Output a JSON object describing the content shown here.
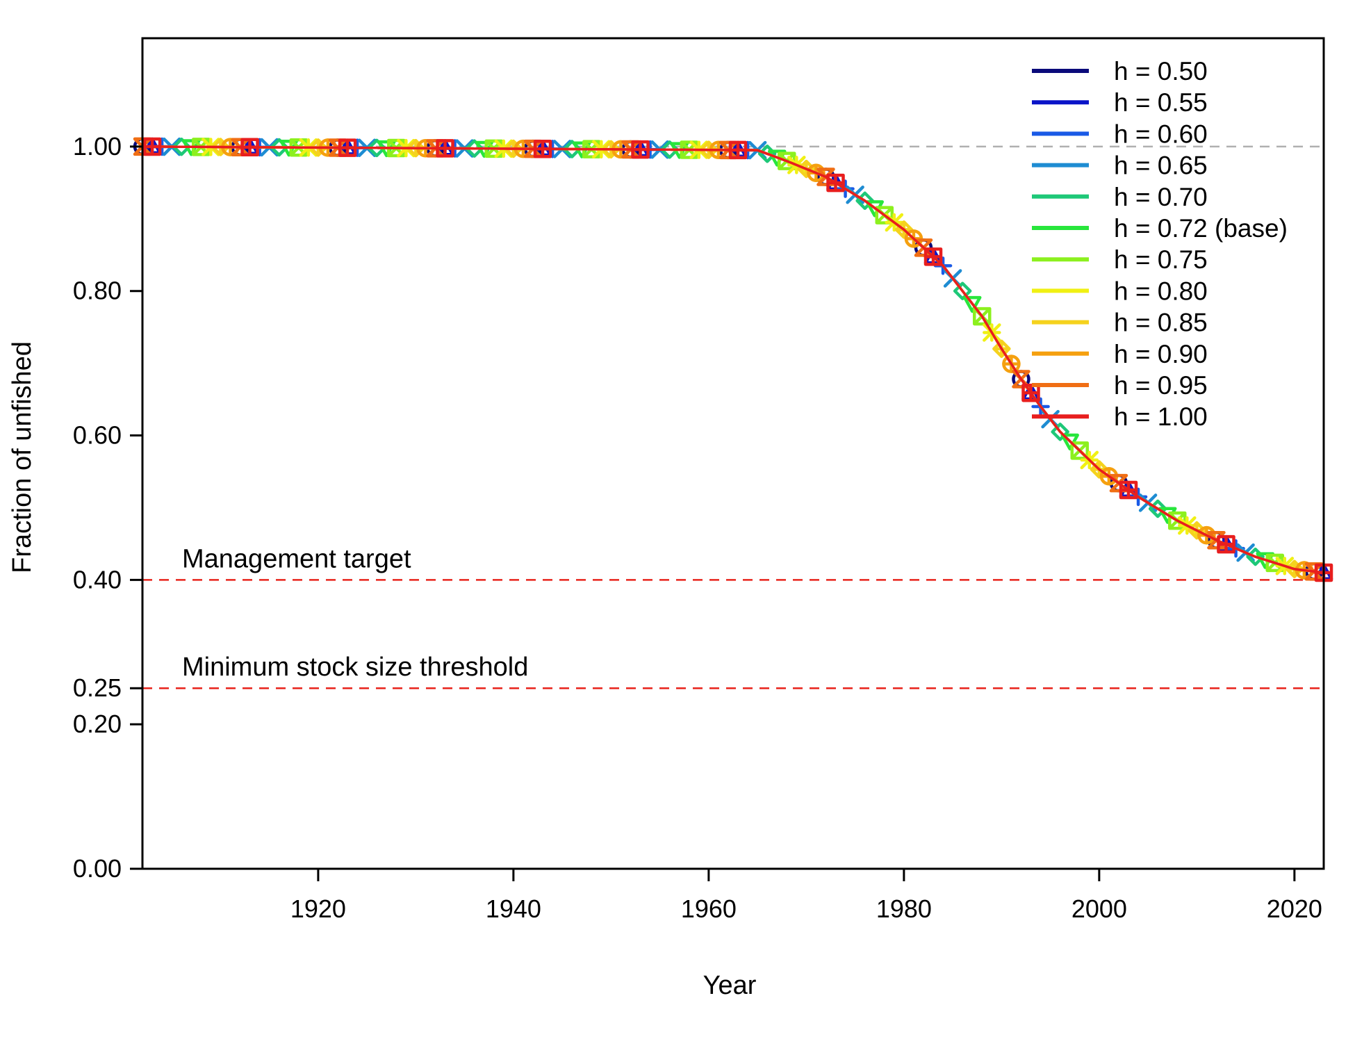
{
  "chart_data": {
    "type": "line",
    "xlabel": "Year",
    "ylabel": "Fraction of unfished",
    "xlim": [
      1902,
      2023
    ],
    "ylim": [
      0,
      1.15
    ],
    "x_ticks": [
      1920,
      1940,
      1960,
      1980,
      2000,
      2020
    ],
    "x_tick_labels": [
      "1920",
      "1940",
      "1960",
      "1980",
      "2000",
      "2020"
    ],
    "y_ticks": [
      0.0,
      0.2,
      0.25,
      0.4,
      0.6,
      0.8,
      1.0
    ],
    "y_tick_labels": [
      "0.00",
      "0.20",
      "0.25",
      "0.40",
      "0.60",
      "0.80",
      "1.00"
    ],
    "grid": false,
    "legend_position": "top-right",
    "reference_lines": [
      {
        "y": 1.0,
        "style": "dashed",
        "color": "#b0b0b0",
        "label": ""
      },
      {
        "y": 0.4,
        "style": "dashed",
        "color": "#e8231b",
        "label": "Management target"
      },
      {
        "y": 0.25,
        "style": "dashed",
        "color": "#e8231b",
        "label": "Minimum stock size threshold"
      }
    ],
    "x": [
      1902,
      1965,
      1968,
      1972,
      1976,
      1980,
      1984,
      1988,
      1990,
      1992,
      1994,
      1996,
      2000,
      2004,
      2008,
      2012,
      2016,
      2020,
      2023
    ],
    "series": [
      {
        "name": "h = 0.50",
        "color": "#0a0a7a",
        "marker": "circle",
        "values": [
          1.0,
          0.995,
          0.98,
          0.958,
          0.925,
          0.885,
          0.835,
          0.765,
          0.72,
          0.678,
          0.64,
          0.605,
          0.553,
          0.515,
          0.482,
          0.455,
          0.432,
          0.415,
          0.41
        ]
      },
      {
        "name": "h = 0.55",
        "color": "#0a14c8",
        "marker": "triangle",
        "values": [
          1.0,
          0.995,
          0.98,
          0.958,
          0.925,
          0.885,
          0.835,
          0.765,
          0.72,
          0.678,
          0.64,
          0.605,
          0.553,
          0.515,
          0.482,
          0.455,
          0.432,
          0.415,
          0.41
        ]
      },
      {
        "name": "h = 0.60",
        "color": "#1a5ae6",
        "marker": "plus",
        "values": [
          1.0,
          0.995,
          0.98,
          0.958,
          0.925,
          0.885,
          0.835,
          0.765,
          0.72,
          0.678,
          0.64,
          0.605,
          0.553,
          0.515,
          0.482,
          0.455,
          0.432,
          0.415,
          0.41
        ]
      },
      {
        "name": "h = 0.65",
        "color": "#1e8cd2",
        "marker": "x",
        "values": [
          1.0,
          0.995,
          0.98,
          0.958,
          0.925,
          0.885,
          0.835,
          0.765,
          0.72,
          0.678,
          0.64,
          0.605,
          0.553,
          0.515,
          0.482,
          0.455,
          0.432,
          0.415,
          0.41
        ]
      },
      {
        "name": "h = 0.70",
        "color": "#1ec878",
        "marker": "diamond",
        "values": [
          1.0,
          0.995,
          0.98,
          0.958,
          0.925,
          0.885,
          0.835,
          0.765,
          0.72,
          0.678,
          0.64,
          0.605,
          0.553,
          0.515,
          0.482,
          0.455,
          0.432,
          0.415,
          0.41
        ]
      },
      {
        "name": "h = 0.72 (base)",
        "color": "#28e63c",
        "marker": "triangle-down",
        "values": [
          1.0,
          0.995,
          0.98,
          0.958,
          0.925,
          0.885,
          0.835,
          0.765,
          0.72,
          0.678,
          0.64,
          0.605,
          0.553,
          0.515,
          0.482,
          0.455,
          0.432,
          0.415,
          0.41
        ]
      },
      {
        "name": "h = 0.75",
        "color": "#8cf01e",
        "marker": "square-x",
        "values": [
          1.0,
          0.995,
          0.98,
          0.958,
          0.925,
          0.885,
          0.835,
          0.765,
          0.72,
          0.678,
          0.64,
          0.605,
          0.553,
          0.515,
          0.482,
          0.455,
          0.432,
          0.415,
          0.41
        ]
      },
      {
        "name": "h = 0.80",
        "color": "#f0f014",
        "marker": "star",
        "values": [
          1.0,
          0.995,
          0.98,
          0.958,
          0.925,
          0.885,
          0.835,
          0.765,
          0.72,
          0.678,
          0.64,
          0.605,
          0.553,
          0.515,
          0.482,
          0.455,
          0.432,
          0.415,
          0.41
        ]
      },
      {
        "name": "h = 0.85",
        "color": "#f5d21e",
        "marker": "diamond-plus",
        "values": [
          1.0,
          0.995,
          0.98,
          0.958,
          0.925,
          0.885,
          0.835,
          0.765,
          0.72,
          0.678,
          0.64,
          0.605,
          0.553,
          0.515,
          0.482,
          0.455,
          0.432,
          0.415,
          0.41
        ]
      },
      {
        "name": "h = 0.90",
        "color": "#f5a00f",
        "marker": "circle-plus",
        "values": [
          1.0,
          0.995,
          0.98,
          0.958,
          0.925,
          0.885,
          0.835,
          0.765,
          0.72,
          0.678,
          0.64,
          0.605,
          0.553,
          0.515,
          0.482,
          0.455,
          0.432,
          0.415,
          0.41
        ]
      },
      {
        "name": "h = 0.95",
        "color": "#f06e14",
        "marker": "hourglass",
        "values": [
          1.0,
          0.995,
          0.98,
          0.958,
          0.925,
          0.885,
          0.835,
          0.765,
          0.72,
          0.678,
          0.64,
          0.605,
          0.553,
          0.515,
          0.482,
          0.455,
          0.432,
          0.415,
          0.41
        ]
      },
      {
        "name": "h = 1.00",
        "color": "#e81e1e",
        "marker": "square-plus",
        "values": [
          1.0,
          0.995,
          0.98,
          0.958,
          0.925,
          0.885,
          0.835,
          0.765,
          0.72,
          0.678,
          0.64,
          0.605,
          0.553,
          0.515,
          0.482,
          0.455,
          0.432,
          0.415,
          0.41
        ]
      }
    ]
  }
}
